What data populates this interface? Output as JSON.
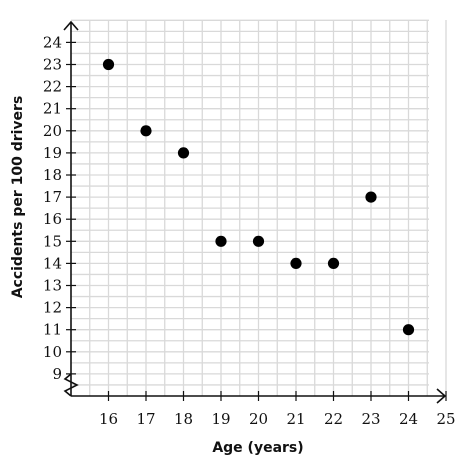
{
  "chart_data": {
    "type": "scatter",
    "title": "",
    "xlabel": "Age (years)",
    "ylabel": "Accidents per 100 drivers",
    "x_ticks": [
      16,
      17,
      18,
      19,
      20,
      21,
      22,
      23,
      24,
      25
    ],
    "y_ticks": [
      9,
      10,
      11,
      12,
      13,
      14,
      15,
      16,
      17,
      18,
      19,
      20,
      21,
      22,
      23,
      24
    ],
    "xlim": [
      15,
      25
    ],
    "ylim": [
      8,
      25
    ],
    "grid": true,
    "axis_break_y": true,
    "series": [
      {
        "x": [
          16,
          17,
          18,
          19,
          20,
          21,
          22,
          23,
          24
        ],
        "y": [
          23,
          20,
          19,
          15,
          15,
          14,
          14,
          17,
          11
        ]
      }
    ]
  }
}
